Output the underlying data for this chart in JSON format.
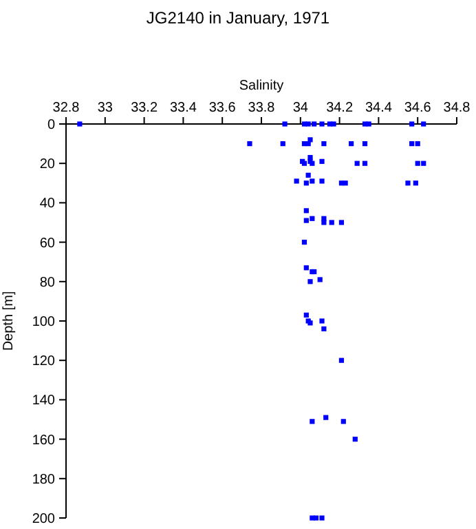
{
  "chart_data": {
    "type": "scatter",
    "title": "JG2140 in January, 1971",
    "xlabel": "Salinity",
    "ylabel": "Depth [m]",
    "xlim": [
      32.8,
      34.8
    ],
    "xticks": [
      32.8,
      33,
      33.2,
      33.4,
      33.6,
      33.8,
      34,
      34.2,
      34.4,
      34.6,
      34.8
    ],
    "ylim": [
      200,
      0
    ],
    "yticks": [
      0,
      20,
      40,
      60,
      80,
      100,
      120,
      140,
      160,
      180,
      200
    ],
    "marker": "square",
    "grid": false,
    "series": [
      {
        "color": "#0000ff",
        "x": [
          32.87,
          33.92,
          34.02,
          34.04,
          34.07,
          34.11,
          34.15,
          34.17,
          34.33,
          34.35,
          34.57,
          34.63,
          33.74,
          33.91,
          34.02,
          34.04,
          34.05,
          34.12,
          34.26,
          34.33,
          34.57,
          34.6,
          34.01,
          34.02,
          34.05,
          34.05,
          34.06,
          34.11,
          34.29,
          34.33,
          34.6,
          34.63,
          34.04,
          33.98,
          34.03,
          34.06,
          34.11,
          34.21,
          34.23,
          34.55,
          34.59,
          34.03,
          34.03,
          34.06,
          34.12,
          34.12,
          34.16,
          34.21,
          34.02,
          34.03,
          34.06,
          34.07,
          34.05,
          34.1,
          34.03,
          34.04,
          34.05,
          34.11,
          34.12,
          34.21,
          34.06,
          34.13,
          34.22,
          34.28,
          34.06,
          34.08,
          34.11
        ],
        "values": [
          0,
          0,
          0,
          0,
          0,
          0,
          0,
          0,
          0,
          0,
          0,
          0,
          10,
          10,
          10,
          10,
          8,
          10,
          10,
          10,
          10,
          10,
          19,
          20,
          17,
          19,
          20,
          19,
          20,
          20,
          20,
          20,
          26,
          29,
          30,
          29,
          29,
          30,
          30,
          30,
          30,
          44,
          49,
          48,
          48,
          50,
          50,
          50,
          60,
          73,
          75,
          75,
          80,
          79,
          97,
          100,
          101,
          100,
          104,
          120,
          151,
          149,
          151,
          160,
          200,
          200,
          200
        ]
      }
    ]
  }
}
